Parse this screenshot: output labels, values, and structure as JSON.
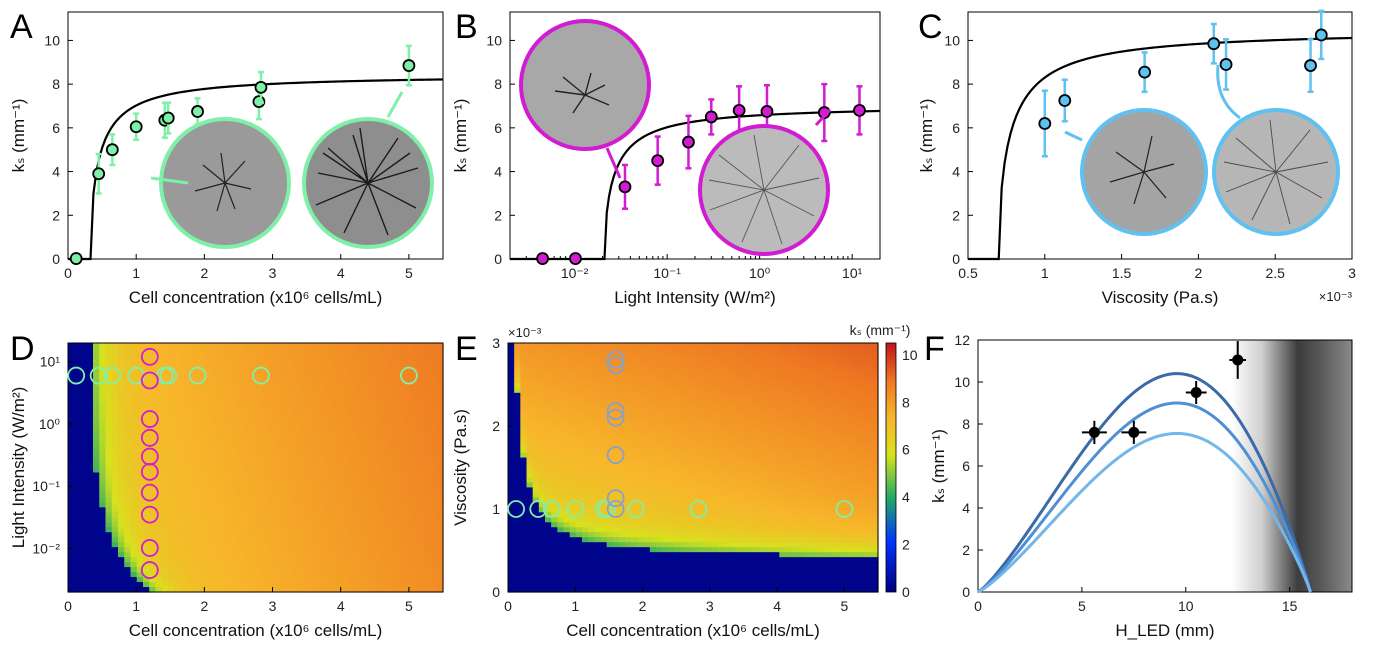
{
  "colors": {
    "A": "#7ff0a8",
    "B": "#d21cd2",
    "C": "#5ec1ef",
    "F_curves": [
      "#3a6aa8",
      "#4e8fd6",
      "#73b6ea"
    ]
  },
  "panel_labels": [
    "A",
    "B",
    "C",
    "D",
    "E",
    "F"
  ],
  "chart_data": [
    {
      "id": "A",
      "type": "scatter",
      "xlabel": "Cell concentration (x10⁶ cells/mL)",
      "ylabel": "kₛ (mm⁻¹)",
      "xlim": [
        0,
        5.5
      ],
      "ylim": [
        0,
        11.3
      ],
      "xticks": [
        "0",
        "1",
        "2",
        "3",
        "4",
        "5"
      ],
      "yticks": [
        "0",
        "2",
        "4",
        "6",
        "8",
        "10"
      ],
      "points": [
        {
          "x": 0.12,
          "y": 0.02,
          "err": 0
        },
        {
          "x": 0.45,
          "y": 3.9,
          "err": 0.9
        },
        {
          "x": 0.65,
          "y": 5.0,
          "err": 0.7
        },
        {
          "x": 1.0,
          "y": 6.05,
          "err": 0.6
        },
        {
          "x": 1.42,
          "y": 6.35,
          "err": 0.8
        },
        {
          "x": 1.47,
          "y": 6.45,
          "err": 0.7
        },
        {
          "x": 1.9,
          "y": 6.75,
          "err": 0.6
        },
        {
          "x": 2.8,
          "y": 7.2,
          "err": 0.8
        },
        {
          "x": 2.83,
          "y": 7.85,
          "err": 0.7
        },
        {
          "x": 5.0,
          "y": 8.85,
          "err": 0.9
        }
      ],
      "fit": {
        "x0": 0.33,
        "kmax": 8.45,
        "c": 0.3
      },
      "grid": false
    },
    {
      "id": "B",
      "type": "scatter",
      "xscale": "log",
      "xlabel": "Light Intensity (W/m²)",
      "ylabel": "kₛ (mm⁻¹)",
      "xlim": [
        0.002,
        20
      ],
      "ylim": [
        0,
        11.3
      ],
      "xticks": [
        "10⁻²",
        "10⁻¹",
        "10⁰",
        "10¹"
      ],
      "yticks": [
        "0",
        "2",
        "4",
        "6",
        "8",
        "10"
      ],
      "points": [
        {
          "x": 0.0045,
          "y": 0.02,
          "err": 0
        },
        {
          "x": 0.0102,
          "y": 0.02,
          "err": 0
        },
        {
          "x": 0.035,
          "y": 3.3,
          "err": 1.0
        },
        {
          "x": 0.079,
          "y": 4.5,
          "err": 1.1
        },
        {
          "x": 0.17,
          "y": 5.35,
          "err": 1.2
        },
        {
          "x": 0.3,
          "y": 6.5,
          "err": 0.8
        },
        {
          "x": 0.6,
          "y": 6.8,
          "err": 1.1
        },
        {
          "x": 1.2,
          "y": 6.75,
          "err": 1.2
        },
        {
          "x": 5.0,
          "y": 6.7,
          "err": 1.3
        },
        {
          "x": 12.0,
          "y": 6.8,
          "err": 1.1
        }
      ],
      "fit": {
        "x0": 0.021,
        "kmax": 7.05,
        "c": 0.25
      },
      "grid": false
    },
    {
      "id": "C",
      "type": "scatter",
      "xlabel": "Viscosity (Pa.s)",
      "ylabel": "kₛ (mm⁻¹)",
      "xexp": "×10⁻³",
      "xlim": [
        0.5,
        3.0
      ],
      "ylim": [
        0,
        11.3
      ],
      "xticks": [
        "0.5",
        "1",
        "1.5",
        "2",
        "2.5",
        "3"
      ],
      "yticks": [
        "0",
        "2",
        "4",
        "6",
        "8",
        "10"
      ],
      "points": [
        {
          "x": 1.0,
          "y": 6.2,
          "err": 1.5
        },
        {
          "x": 1.13,
          "y": 7.25,
          "err": 0.95
        },
        {
          "x": 1.65,
          "y": 8.55,
          "err": 0.9
        },
        {
          "x": 2.1,
          "y": 9.85,
          "err": 0.9
        },
        {
          "x": 2.18,
          "y": 8.9,
          "err": 1.15
        },
        {
          "x": 2.73,
          "y": 8.85,
          "err": 1.2
        },
        {
          "x": 2.8,
          "y": 10.25,
          "err": 1.1
        }
      ],
      "fit": {
        "x0": 0.7,
        "kmax": 10.5,
        "c": 0.18
      },
      "grid": false
    },
    {
      "id": "D",
      "type": "heatmap",
      "yscale": "log",
      "xlabel": "Cell concentration (x10⁶ cells/mL)",
      "ylabel": "Light Intensity (W/m²)",
      "xlim": [
        0,
        5.5
      ],
      "ylim": [
        0.002,
        20
      ],
      "xticks": [
        "0",
        "1",
        "2",
        "3",
        "4",
        "5"
      ],
      "yticks": [
        "10⁻²",
        "10⁻¹",
        "10⁰",
        "10¹"
      ],
      "markers_green": [
        {
          "x": 0.12,
          "y": 6
        },
        {
          "x": 0.45,
          "y": 6
        },
        {
          "x": 0.65,
          "y": 6
        },
        {
          "x": 1.0,
          "y": 6
        },
        {
          "x": 1.42,
          "y": 6
        },
        {
          "x": 1.47,
          "y": 6
        },
        {
          "x": 1.9,
          "y": 6
        },
        {
          "x": 2.83,
          "y": 6
        },
        {
          "x": 5.0,
          "y": 6
        }
      ],
      "markers_magenta": [
        {
          "x": 1.2,
          "y": 12
        },
        {
          "x": 1.2,
          "y": 5
        },
        {
          "x": 1.2,
          "y": 1.2
        },
        {
          "x": 1.2,
          "y": 0.6
        },
        {
          "x": 1.2,
          "y": 0.3
        },
        {
          "x": 1.2,
          "y": 0.17
        },
        {
          "x": 1.2,
          "y": 0.079
        },
        {
          "x": 1.2,
          "y": 0.035
        },
        {
          "x": 1.2,
          "y": 0.0102
        },
        {
          "x": 1.2,
          "y": 0.0045
        }
      ]
    },
    {
      "id": "E",
      "type": "heatmap",
      "xlabel": "Cell concentration (x10⁶ cells/mL)",
      "ylabel": "Viscosity (Pa.s)",
      "yexp": "×10⁻³",
      "xlim": [
        0,
        5.5
      ],
      "ylim": [
        0,
        3.0
      ],
      "xticks": [
        "0",
        "1",
        "2",
        "3",
        "4",
        "5"
      ],
      "yticks": [
        "0",
        "1",
        "2",
        "3"
      ],
      "colorbar": {
        "title": "kₛ (mm⁻¹)",
        "min": 0,
        "max": 10.5,
        "ticks": [
          "0",
          "2",
          "4",
          "6",
          "8",
          "10"
        ]
      },
      "markers_green": [
        {
          "x": 0.12,
          "y": 1.0
        },
        {
          "x": 0.45,
          "y": 1.0
        },
        {
          "x": 0.65,
          "y": 1.0
        },
        {
          "x": 1.0,
          "y": 1.0
        },
        {
          "x": 1.42,
          "y": 1.0
        },
        {
          "x": 1.47,
          "y": 1.0
        },
        {
          "x": 1.9,
          "y": 1.0
        },
        {
          "x": 2.83,
          "y": 1.0
        },
        {
          "x": 5.0,
          "y": 1.0
        }
      ],
      "markers_blue": [
        {
          "x": 1.6,
          "y": 1.0
        },
        {
          "x": 1.6,
          "y": 1.13
        },
        {
          "x": 1.6,
          "y": 1.65
        },
        {
          "x": 1.6,
          "y": 2.1
        },
        {
          "x": 1.6,
          "y": 2.18
        },
        {
          "x": 1.6,
          "y": 2.73
        },
        {
          "x": 1.6,
          "y": 2.8
        }
      ]
    },
    {
      "id": "F",
      "type": "line",
      "xlabel": "H_LED (mm)",
      "ylabel": "kₛ (mm⁻¹)",
      "xlim": [
        0,
        18
      ],
      "ylim": [
        0,
        12
      ],
      "xticks": [
        "0",
        "5",
        "10",
        "15"
      ],
      "yticks": [
        "0",
        "2",
        "4",
        "6",
        "8",
        "10",
        "12"
      ],
      "curves": [
        {
          "peak": 10.4
        },
        {
          "peak": 9.0
        },
        {
          "peak": 7.55
        }
      ],
      "curve_x0": 16.0,
      "points": [
        {
          "x": 5.6,
          "y": 7.6,
          "xerr": 0.6,
          "yerr": 0.55
        },
        {
          "x": 7.5,
          "y": 7.6,
          "xerr": 0.6,
          "yerr": 0.55
        },
        {
          "x": 10.5,
          "y": 9.5,
          "xerr": 0.5,
          "yerr": 0.55
        },
        {
          "x": 12.5,
          "y": 11.05,
          "xerr": 0.4,
          "yerr": 0.9
        }
      ]
    }
  ]
}
